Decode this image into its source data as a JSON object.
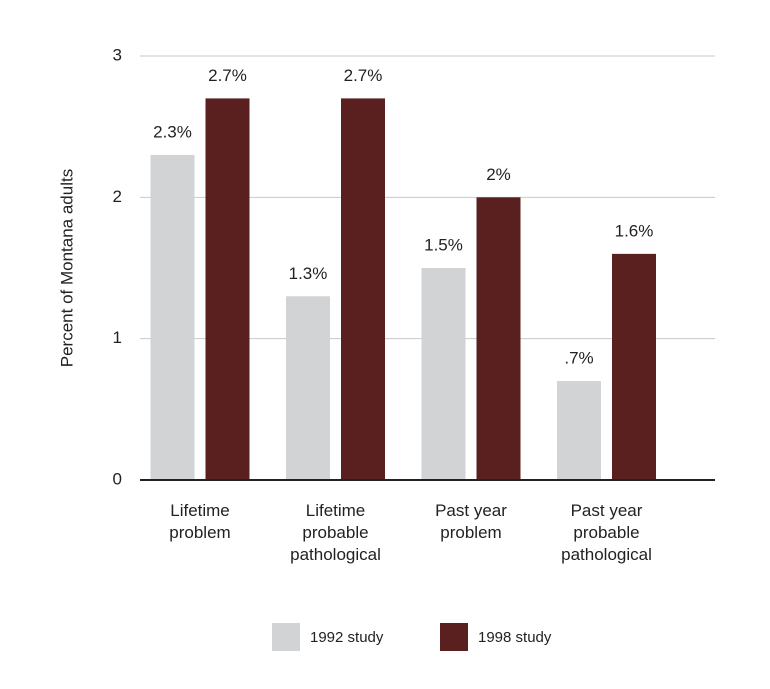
{
  "chart_data": {
    "type": "bar",
    "y_label": "Percent of Montana adults",
    "categories": [
      "Lifetime\nproblem",
      "Lifetime\nprobable\npathological",
      "Past year\nproblem",
      "Past year\nprobable\npathological"
    ],
    "series": [
      {
        "name": "1992 study",
        "color": "#d1d3d4",
        "values": [
          2.3,
          1.3,
          1.5,
          0.7
        ],
        "value_labels": [
          "2.3%",
          "1.3%",
          "1.5%",
          ".7%"
        ]
      },
      {
        "name": "1998 study",
        "color": "#5a1f1f",
        "values": [
          2.7,
          2.7,
          2.0,
          1.6
        ],
        "value_labels": [
          "2.7%",
          "2.7%",
          "2%",
          "1.6%"
        ]
      }
    ],
    "ylim": [
      0,
      3
    ],
    "yticks": [
      0,
      1,
      2,
      3
    ],
    "grid": true,
    "legend": "bottom"
  }
}
